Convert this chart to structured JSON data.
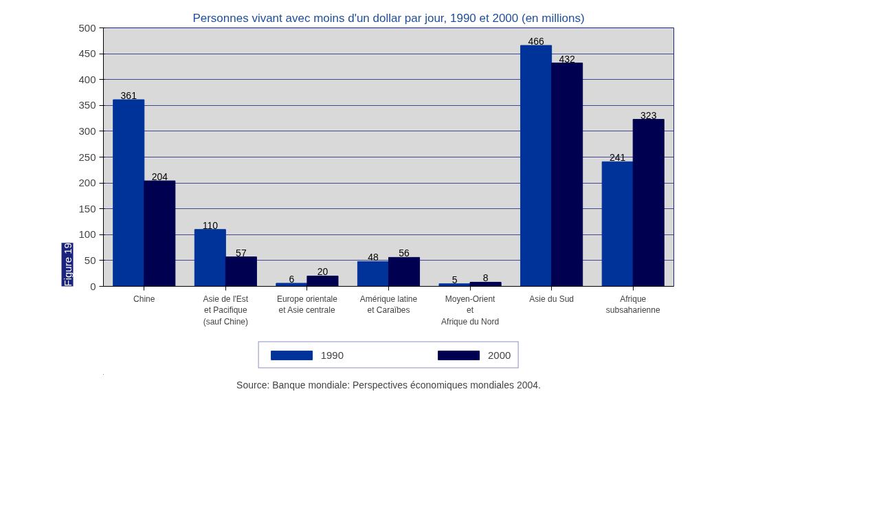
{
  "chart_data": {
    "type": "bar",
    "title": "Personnes vivant avec moins d'un dollar par jour, 1990 et 2000 (en millions)",
    "categories": [
      "Chine",
      "Asie de l'Est\net Pacifique\n(sauf Chine)",
      "Europe orientale\net Asie centrale",
      "Amérique latine\net Caraïbes",
      "Moyen-Orient\net\nAfrique du Nord",
      "Asie du Sud",
      "Afrique\nsubsaharienne"
    ],
    "series": [
      {
        "name": "1990",
        "color": "#003399",
        "values": [
          361,
          110,
          6,
          48,
          5,
          466,
          241
        ]
      },
      {
        "name": "2000",
        "color": "#000050",
        "values": [
          204,
          57,
          20,
          56,
          8,
          432,
          323
        ]
      }
    ],
    "ylim": [
      0,
      500
    ],
    "yticks": [
      0,
      50,
      100,
      150,
      200,
      250,
      300,
      350,
      400,
      450,
      500
    ],
    "grid": "y",
    "legend": "bottom",
    "data_labels": true,
    "annotations": [
      "Source: Banque mondiale: Perspectives économiques mondiales 2004.",
      "Figure 19"
    ]
  }
}
